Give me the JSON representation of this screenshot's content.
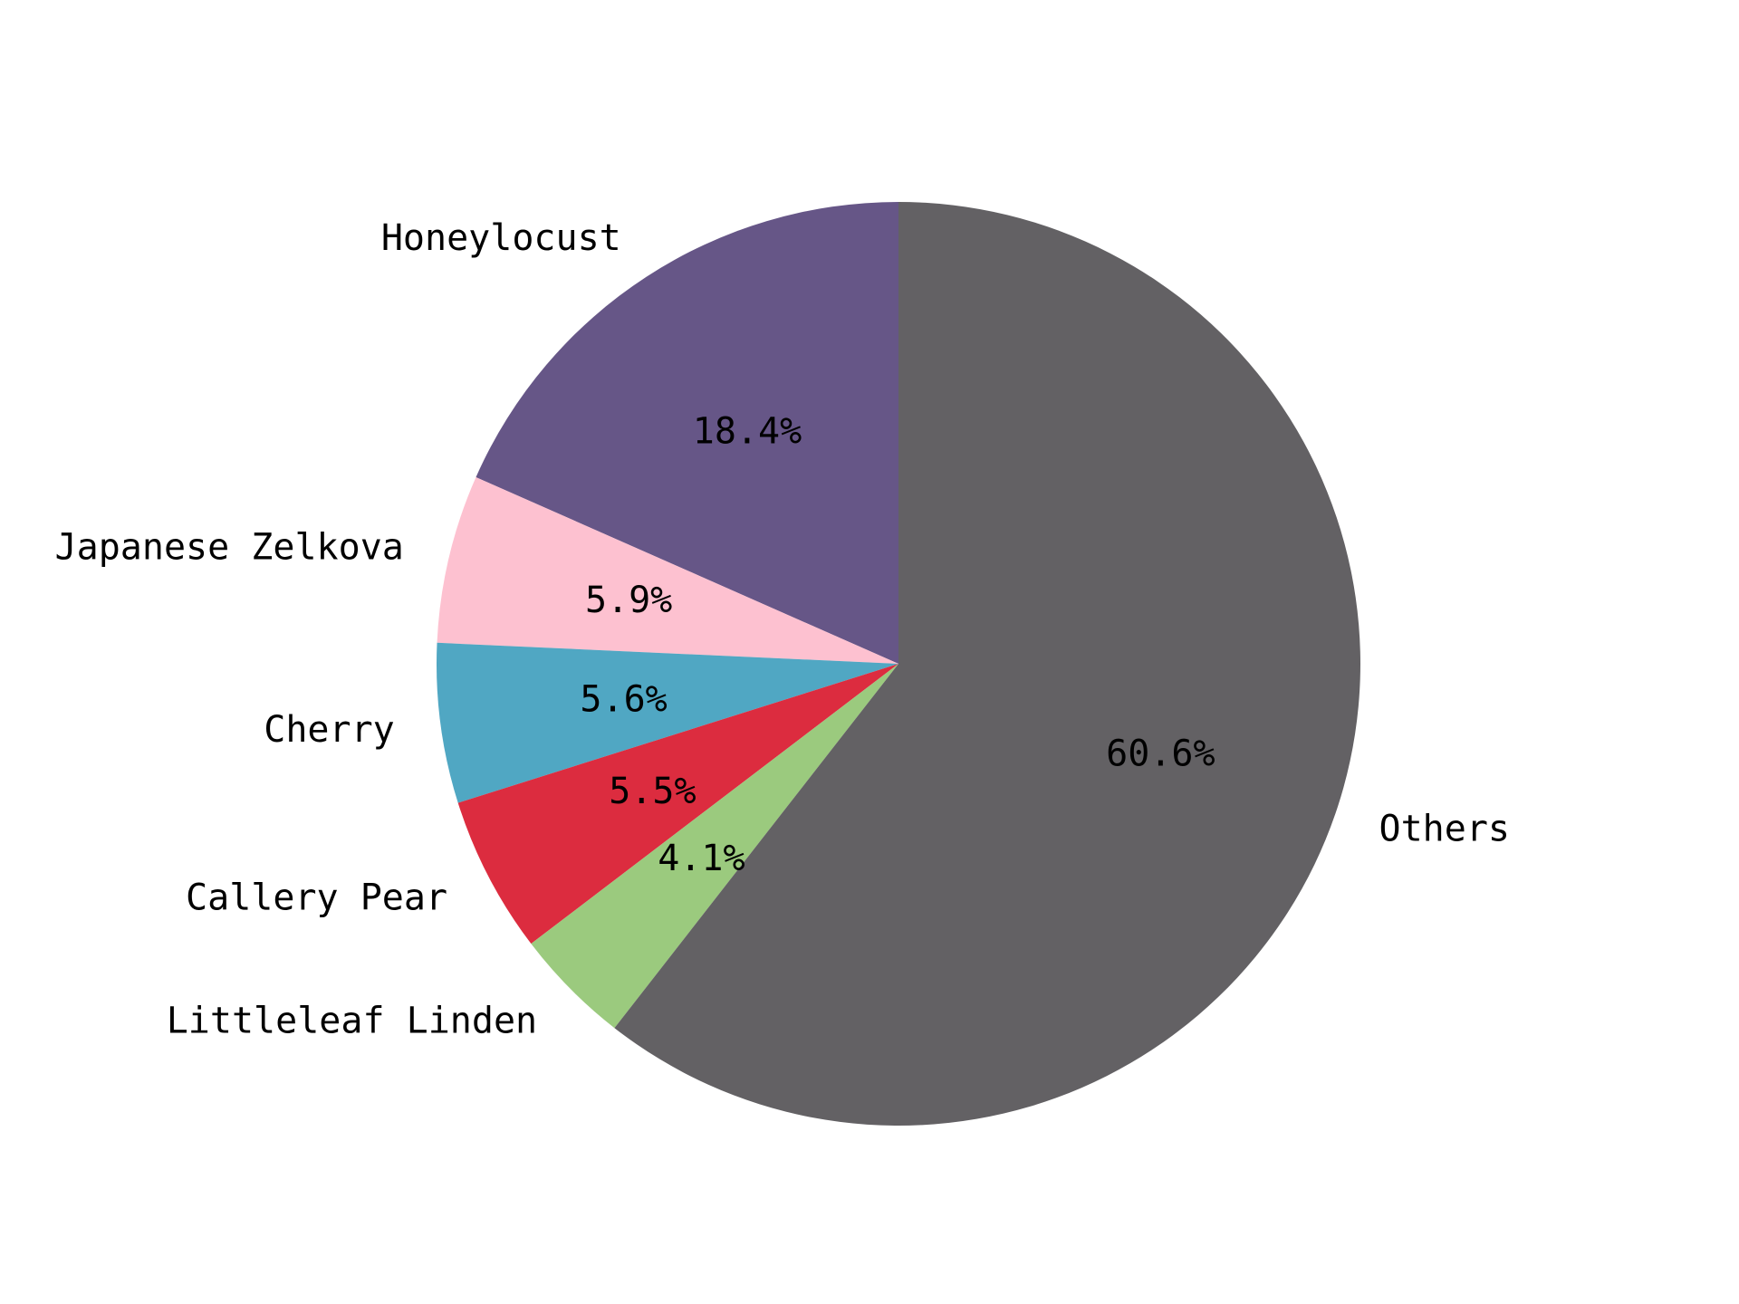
{
  "chart_data": {
    "type": "pie",
    "title": "",
    "slices": [
      {
        "label": "Honeylocust",
        "value": 18.4,
        "pct_label": "18.4%",
        "color": "#665687"
      },
      {
        "label": "Japanese Zelkova",
        "value": 5.9,
        "pct_label": "5.9%",
        "color": "#fdc1d0"
      },
      {
        "label": "Cherry",
        "value": 5.6,
        "pct_label": "5.6%",
        "color": "#50a7c3"
      },
      {
        "label": "Callery Pear",
        "value": 5.5,
        "pct_label": "5.5%",
        "color": "#dc2c3f"
      },
      {
        "label": "Littleleaf Linden",
        "value": 4.1,
        "pct_label": "4.1%",
        "color": "#9bca7e"
      },
      {
        "label": "Others",
        "value": 60.6,
        "pct_label": "60.6%",
        "color": "#636164"
      }
    ],
    "start_angle_deg": 90,
    "direction": "counterclockwise",
    "legend": "none",
    "label_placement": "outside",
    "pct_placement": "inside"
  }
}
